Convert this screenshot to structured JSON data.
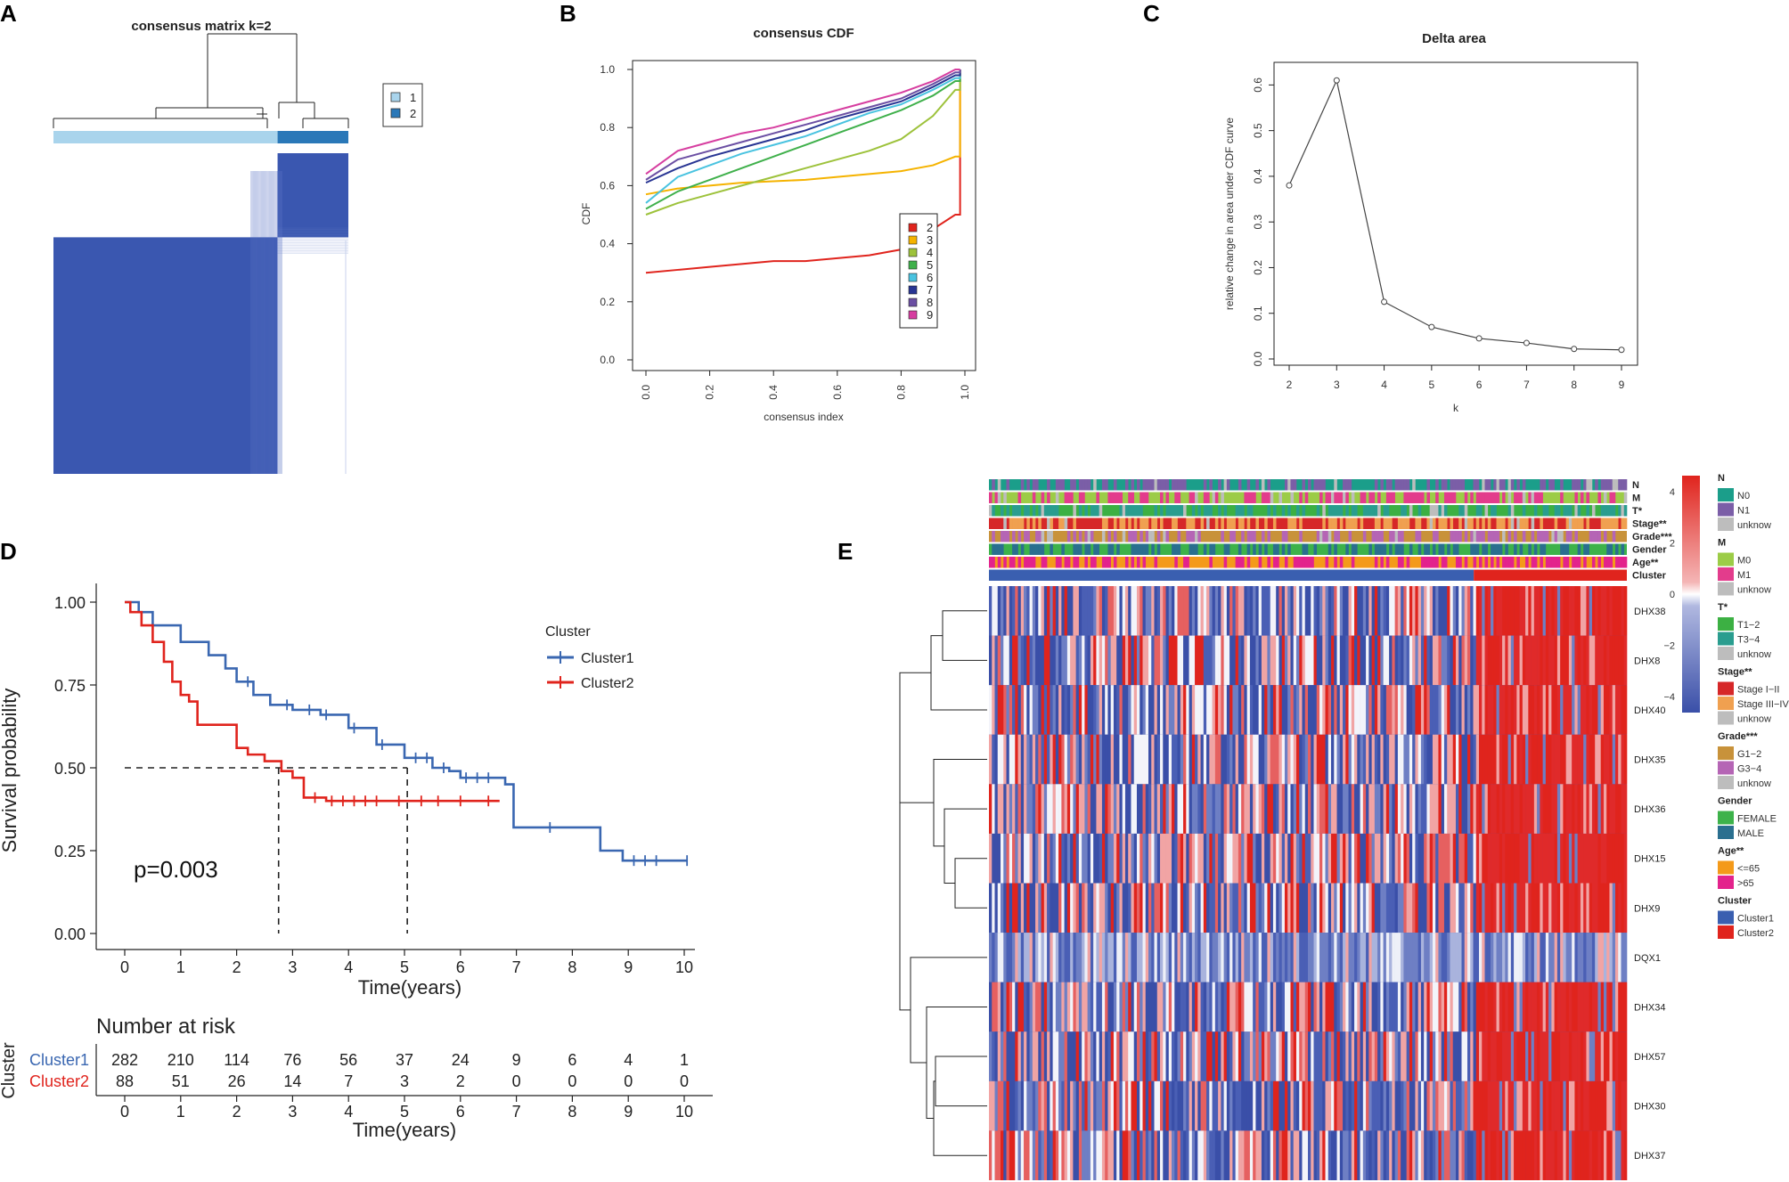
{
  "panels": {
    "A": "A",
    "B": "B",
    "C": "C",
    "D": "D",
    "E": "E"
  },
  "panel_a": {
    "title": "consensus matrix k=2",
    "legend": [
      {
        "label": "1",
        "color": "#a9d4ec"
      },
      {
        "label": "2",
        "color": "#2a78b8"
      }
    ]
  },
  "chart_data": [
    {
      "id": "consensus_matrix",
      "type": "heatmap",
      "title": "consensus matrix k=2",
      "k": 2,
      "cluster_fraction": [
        0.76,
        0.24
      ],
      "legend": [
        "1",
        "2"
      ]
    },
    {
      "id": "consensus_cdf",
      "type": "line",
      "title": "consensus CDF",
      "xlabel": "consensus index",
      "ylabel": "CDF",
      "xlim": [
        0,
        1
      ],
      "ylim": [
        0,
        1
      ],
      "xticks": [
        "0.0",
        "0.2",
        "0.4",
        "0.6",
        "0.8",
        "1.0"
      ],
      "yticks": [
        "0.0",
        "0.2",
        "0.4",
        "0.6",
        "0.8",
        "1.0"
      ],
      "x": [
        0,
        0.1,
        0.2,
        0.3,
        0.4,
        0.5,
        0.6,
        0.7,
        0.8,
        0.9,
        0.97
      ],
      "series": [
        {
          "name": "2",
          "color": "#e0241d",
          "values": [
            0.3,
            0.31,
            0.32,
            0.33,
            0.34,
            0.34,
            0.35,
            0.36,
            0.38,
            0.45,
            0.5
          ]
        },
        {
          "name": "3",
          "color": "#f5b300",
          "values": [
            0.57,
            0.59,
            0.6,
            0.61,
            0.615,
            0.62,
            0.63,
            0.64,
            0.65,
            0.67,
            0.7
          ]
        },
        {
          "name": "4",
          "color": "#9dc23b",
          "values": [
            0.5,
            0.54,
            0.57,
            0.6,
            0.63,
            0.66,
            0.69,
            0.72,
            0.76,
            0.84,
            0.93
          ]
        },
        {
          "name": "5",
          "color": "#3fb04b",
          "values": [
            0.52,
            0.58,
            0.62,
            0.66,
            0.7,
            0.74,
            0.78,
            0.82,
            0.86,
            0.91,
            0.96
          ]
        },
        {
          "name": "6",
          "color": "#49c3e0",
          "values": [
            0.54,
            0.63,
            0.67,
            0.71,
            0.74,
            0.77,
            0.81,
            0.85,
            0.88,
            0.93,
            0.97
          ]
        },
        {
          "name": "7",
          "color": "#283593",
          "values": [
            0.61,
            0.66,
            0.7,
            0.73,
            0.76,
            0.79,
            0.83,
            0.86,
            0.89,
            0.94,
            0.98
          ]
        },
        {
          "name": "8",
          "color": "#6b4fa3",
          "values": [
            0.62,
            0.69,
            0.72,
            0.75,
            0.78,
            0.81,
            0.84,
            0.87,
            0.9,
            0.95,
            0.99
          ]
        },
        {
          "name": "9",
          "color": "#d63ea0",
          "values": [
            0.64,
            0.72,
            0.75,
            0.78,
            0.8,
            0.83,
            0.86,
            0.89,
            0.92,
            0.96,
            1.0
          ]
        }
      ]
    },
    {
      "id": "delta_area",
      "type": "line",
      "title": "Delta area",
      "xlabel": "k",
      "ylabel": "relative change in area under CDF curve",
      "xlim": [
        2,
        9
      ],
      "ylim": [
        0,
        0.63
      ],
      "xticks": [
        "2",
        "3",
        "4",
        "5",
        "6",
        "7",
        "8",
        "9"
      ],
      "yticks": [
        "0.0",
        "0.1",
        "0.2",
        "0.3",
        "0.4",
        "0.5",
        "0.6"
      ],
      "x": [
        2,
        3,
        4,
        5,
        6,
        7,
        8,
        9
      ],
      "values": [
        0.38,
        0.61,
        0.125,
        0.07,
        0.045,
        0.035,
        0.022,
        0.02
      ]
    },
    {
      "id": "survival",
      "type": "line",
      "xlabel": "Time(years)",
      "ylabel": "Survival probability",
      "xlim": [
        -0.5,
        10.3
      ],
      "ylim": [
        0,
        1.05
      ],
      "xticks": [
        "0",
        "1",
        "2",
        "3",
        "4",
        "5",
        "6",
        "7",
        "8",
        "9",
        "10"
      ],
      "yticks": [
        "0.00",
        "0.25",
        "0.50",
        "0.75",
        "1.00"
      ],
      "annotation": "p=0.003",
      "legend_title": "Cluster",
      "median_line_y": 0.5,
      "median_times": [
        2.75,
        5.05
      ],
      "series": [
        {
          "name": "Cluster1",
          "color": "#3a67b1",
          "x": [
            0,
            0.25,
            0.5,
            1.0,
            1.5,
            1.8,
            2.0,
            2.3,
            2.6,
            3.0,
            3.5,
            4.0,
            4.5,
            5.0,
            5.5,
            5.8,
            6.0,
            6.8,
            6.95,
            7.5,
            8.5,
            8.9,
            10.05
          ],
          "values": [
            1.0,
            0.97,
            0.93,
            0.88,
            0.84,
            0.8,
            0.76,
            0.72,
            0.69,
            0.675,
            0.66,
            0.62,
            0.57,
            0.53,
            0.5,
            0.49,
            0.47,
            0.45,
            0.32,
            0.32,
            0.25,
            0.22,
            0.22
          ],
          "censor_x": [
            2.2,
            2.9,
            3.3,
            3.6,
            4.1,
            4.6,
            5.2,
            5.4,
            5.7,
            6.1,
            6.3,
            6.5,
            7.6,
            9.1,
            9.3,
            9.5,
            10.05
          ]
        },
        {
          "name": "Cluster2",
          "color": "#e0241d",
          "x": [
            0,
            0.1,
            0.3,
            0.5,
            0.7,
            0.85,
            1.0,
            1.15,
            1.3,
            1.8,
            2.0,
            2.2,
            2.5,
            2.8,
            3.0,
            3.2,
            3.6,
            4.0,
            5.0,
            6.7
          ],
          "values": [
            1.0,
            0.97,
            0.93,
            0.88,
            0.82,
            0.76,
            0.72,
            0.7,
            0.63,
            0.63,
            0.56,
            0.54,
            0.52,
            0.49,
            0.47,
            0.41,
            0.4,
            0.4,
            0.4,
            0.4
          ],
          "censor_x": [
            3.4,
            3.7,
            3.9,
            4.1,
            4.3,
            4.5,
            4.9,
            5.3,
            5.6,
            6.0,
            6.5
          ]
        }
      ]
    },
    {
      "id": "risk_table",
      "type": "table",
      "title": "Number at risk",
      "ylabel": "Cluster",
      "xlabel": "Time(years)",
      "columns": [
        "0",
        "1",
        "2",
        "3",
        "4",
        "5",
        "6",
        "7",
        "8",
        "9",
        "10"
      ],
      "rows": [
        {
          "name": "Cluster1",
          "color": "#3a67b1",
          "values": [
            "282",
            "210",
            "114",
            "76",
            "56",
            "37",
            "24",
            "9",
            "6",
            "4",
            "1"
          ]
        },
        {
          "name": "Cluster2",
          "color": "#e0241d",
          "values": [
            "88",
            "51",
            "26",
            "14",
            "7",
            "3",
            "2",
            "0",
            "0",
            "0",
            "0"
          ]
        }
      ]
    },
    {
      "id": "expression_heatmap",
      "type": "heatmap",
      "genes": [
        "DHX38",
        "DHX8",
        "DHX40",
        "DHX35",
        "DHX36",
        "DHX15",
        "DHX9",
        "DQX1",
        "DHX34",
        "DHX57",
        "DHX30",
        "DHX37"
      ],
      "tracks": [
        "N",
        "M",
        "T*",
        "Stage**",
        "Grade***",
        "Gender",
        "Age**",
        "Cluster"
      ],
      "cluster_fraction": [
        0.76,
        0.24
      ],
      "color_scale": {
        "min": -4,
        "max": 4,
        "ticks": [
          "4",
          "2",
          "0",
          "−2",
          "−4"
        ]
      },
      "legend_groups": [
        {
          "title": "N",
          "items": [
            {
              "label": "N0",
              "color": "#1b9e8a"
            },
            {
              "label": "N1",
              "color": "#7b5ea7"
            },
            {
              "label": "unknow",
              "color": "#bdbdbd"
            }
          ]
        },
        {
          "title": "M",
          "items": [
            {
              "label": "M0",
              "color": "#9ccc47"
            },
            {
              "label": "M1",
              "color": "#e33c8c"
            },
            {
              "label": "unknow",
              "color": "#bdbdbd"
            }
          ]
        },
        {
          "title": "T*",
          "items": [
            {
              "label": "T1−2",
              "color": "#3cb043"
            },
            {
              "label": "T3−4",
              "color": "#2a9d8f"
            },
            {
              "label": "unknow",
              "color": "#bdbdbd"
            }
          ]
        },
        {
          "title": "Stage**",
          "items": [
            {
              "label": "Stage I−II",
              "color": "#d62728"
            },
            {
              "label": "Stage III−IV",
              "color": "#f0a050"
            },
            {
              "label": "unknow",
              "color": "#bdbdbd"
            }
          ]
        },
        {
          "title": "Grade***",
          "items": [
            {
              "label": "G1−2",
              "color": "#c8923a"
            },
            {
              "label": "G3−4",
              "color": "#b565b5"
            },
            {
              "label": "unknow",
              "color": "#bdbdbd"
            }
          ]
        },
        {
          "title": "Gender",
          "items": [
            {
              "label": "FEMALE",
              "color": "#3db24a"
            },
            {
              "label": "MALE",
              "color": "#2a6f8f"
            }
          ]
        },
        {
          "title": "Age**",
          "items": [
            {
              "label": "<=65",
              "color": "#f49a1a"
            },
            {
              "label": ">65",
              "color": "#e3238c"
            }
          ]
        },
        {
          "title": "Cluster",
          "items": [
            {
              "label": "Cluster1",
              "color": "#3a5fb0"
            },
            {
              "label": "Cluster2",
              "color": "#e0241d"
            }
          ]
        }
      ]
    }
  ]
}
